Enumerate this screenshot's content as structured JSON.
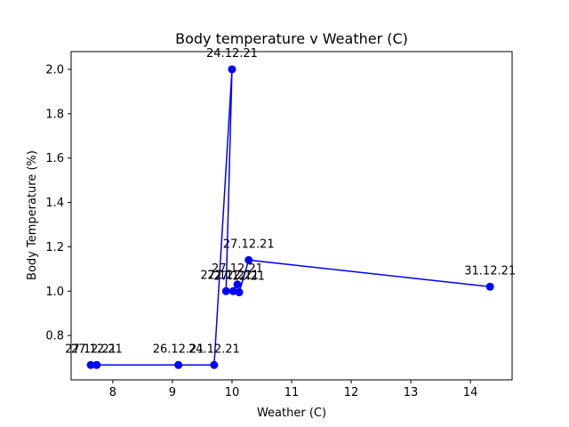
{
  "chart_data": {
    "type": "line",
    "title": "Body temperature v Weather (C)",
    "xlabel": "Weather (C)",
    "ylabel": "Body Temperature (%)",
    "xlim": [
      7.3,
      14.7
    ],
    "ylim": [
      0.6,
      2.08
    ],
    "xticks": [
      8,
      9,
      10,
      11,
      12,
      13,
      14
    ],
    "yticks": [
      0.8,
      1.0,
      1.2,
      1.4,
      1.6,
      1.8,
      2.0
    ],
    "xtick_labels": [
      "8",
      "9",
      "10",
      "11",
      "12",
      "13",
      "14"
    ],
    "ytick_labels": [
      "0.8",
      "1.0",
      "1.2",
      "1.4",
      "1.6",
      "1.8",
      "2.0"
    ],
    "grid": false,
    "line_color": "#0000ff",
    "marker_color": "#0000ff",
    "series": [
      {
        "points": [
          {
            "x": 14.33,
            "y": 1.02,
            "label": "31.12.21"
          },
          {
            "x": 10.28,
            "y": 1.14,
            "label": "27.12.21"
          },
          {
            "x": 10.12,
            "y": 0.995,
            "label": "27.12.21"
          },
          {
            "x": 10.09,
            "y": 1.03,
            "label": "27.12.21"
          },
          {
            "x": 10.02,
            "y": 1.0,
            "label": "27.12.21"
          },
          {
            "x": 9.9,
            "y": 1.0,
            "label": "27.12.21"
          },
          {
            "x": 10.0,
            "y": 2.0,
            "label": "24.12.21"
          },
          {
            "x": 9.7,
            "y": 0.667,
            "label": "24.12.21"
          },
          {
            "x": 9.1,
            "y": 0.667,
            "label": "26.12.21"
          },
          {
            "x": 7.73,
            "y": 0.667,
            "label": "27.12.21"
          },
          {
            "x": 7.63,
            "y": 0.667,
            "label": "27.12.21"
          }
        ]
      }
    ]
  }
}
